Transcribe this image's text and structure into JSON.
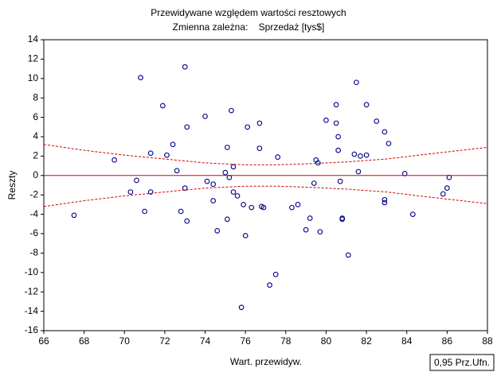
{
  "chart_data": {
    "type": "scatter",
    "title": "Przewidywane względem wartości resztowych",
    "subtitle": "Zmienna zależna:    Sprzedaż [tys$]",
    "x_label": "Wart. przewidyw.",
    "y_label": "Reszty",
    "confidence_label": "0,95 Prz.Ufn.",
    "xlim": [
      66,
      88
    ],
    "xticks": [
      66,
      68,
      70,
      72,
      74,
      76,
      78,
      80,
      82,
      84,
      86,
      88
    ],
    "ylim": [
      -16,
      14
    ],
    "yticks": [
      -16,
      -14,
      -12,
      -10,
      -8,
      -6,
      -4,
      -2,
      0,
      2,
      4,
      6,
      8,
      10,
      12,
      14
    ],
    "series": [
      {
        "style": "markers",
        "color": "#00008b",
        "x": [
          67.5,
          69.5,
          70.3,
          70.6,
          70.8,
          71.0,
          71.3,
          71.3,
          71.9,
          72.1,
          72.4,
          72.6,
          72.8,
          73.0,
          73.0,
          73.1,
          73.1,
          74.0,
          74.1,
          74.4,
          74.4,
          74.6,
          75.0,
          75.1,
          75.2,
          75.1,
          75.3,
          75.4,
          75.4,
          75.6,
          75.8,
          75.9,
          76.0,
          76.1,
          76.3,
          76.7,
          76.7,
          76.8,
          76.9,
          77.2,
          77.5,
          77.6,
          78.3,
          78.6,
          79.0,
          79.2,
          79.4,
          79.5,
          79.6,
          79.7,
          80.0,
          80.5,
          80.5,
          80.6,
          80.6,
          80.7,
          80.8,
          80.8,
          81.1,
          81.4,
          81.5,
          81.6,
          81.7,
          82.0,
          82.0,
          82.5,
          82.9,
          82.9,
          82.9,
          83.1,
          83.9,
          84.3,
          85.8,
          86.0,
          86.1
        ],
        "values": [
          -4.1,
          1.6,
          -1.7,
          -0.5,
          10.1,
          -3.7,
          2.3,
          -1.7,
          7.2,
          2.1,
          3.2,
          0.5,
          -3.7,
          11.2,
          -1.3,
          5.0,
          -4.7,
          6.1,
          -0.6,
          -2.6,
          -0.9,
          -5.7,
          0.3,
          2.9,
          -0.2,
          -4.5,
          6.7,
          -1.7,
          0.9,
          -2.1,
          -13.6,
          -3.0,
          -6.2,
          5.0,
          -3.3,
          5.4,
          2.8,
          -3.2,
          -3.3,
          -11.3,
          -10.2,
          1.9,
          -3.3,
          -3.0,
          -5.6,
          -4.4,
          -0.8,
          1.6,
          1.3,
          -5.8,
          5.7,
          7.3,
          5.4,
          4.0,
          2.6,
          -0.6,
          -4.4,
          -4.5,
          -8.2,
          2.2,
          9.6,
          0.4,
          2.0,
          7.3,
          2.1,
          5.6,
          4.5,
          -2.5,
          -2.8,
          3.3,
          0.2,
          -4.0,
          -1.9,
          -1.3,
          -0.2
        ]
      },
      {
        "style": "solid",
        "color": "#cc0000",
        "x": [
          66,
          88
        ],
        "values": [
          0,
          0
        ]
      },
      {
        "style": "dashed",
        "color": "#cc0000",
        "x": [
          66,
          68,
          70,
          72,
          74,
          76,
          77.5,
          79,
          81,
          83,
          85,
          88
        ],
        "values": [
          3.2,
          2.6,
          2.1,
          1.7,
          1.3,
          1.1,
          1.1,
          1.2,
          1.4,
          1.7,
          2.2,
          2.9
        ]
      },
      {
        "style": "dashed",
        "color": "#cc0000",
        "x": [
          66,
          68,
          70,
          72,
          74,
          76,
          77.5,
          79,
          81,
          83,
          85,
          88
        ],
        "values": [
          -3.2,
          -2.6,
          -2.1,
          -1.7,
          -1.3,
          -1.1,
          -1.1,
          -1.2,
          -1.4,
          -1.7,
          -2.2,
          -2.9
        ]
      }
    ]
  }
}
